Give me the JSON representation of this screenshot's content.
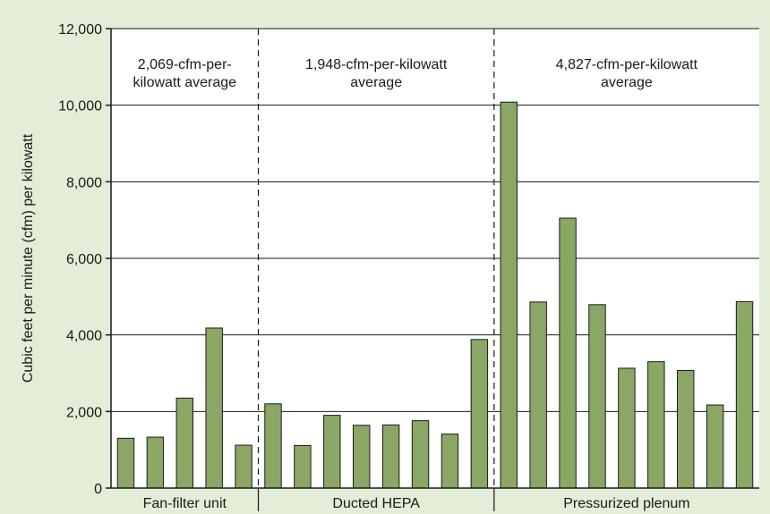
{
  "chart_data": {
    "type": "bar",
    "ylabel": "Cubic feet per minute (cfm) per kilowatt",
    "ylim": [
      0,
      12000
    ],
    "yticks": [
      "0",
      "2,000",
      "4,000",
      "6,000",
      "8,000",
      "10,000",
      "12,000"
    ],
    "ytick_values": [
      0,
      2000,
      4000,
      6000,
      8000,
      10000,
      12000
    ],
    "grid": true,
    "colors": {
      "bar": "#8aa765",
      "bar_edge": "#1a1a1a",
      "background": "#e3edd8",
      "plot": "#ffffff"
    },
    "groups": [
      {
        "name": "Fan-filter unit",
        "annotation": [
          "2,069-cfm-per-",
          "kilowatt average"
        ],
        "values": [
          1300,
          1330,
          2350,
          4180,
          1120
        ]
      },
      {
        "name": "Ducted HEPA",
        "annotation": [
          "1,948-cfm-per-kilowatt",
          "average"
        ],
        "values": [
          2200,
          1110,
          1900,
          1640,
          1650,
          1760,
          1410,
          3880
        ]
      },
      {
        "name": "Pressurized plenum",
        "annotation": [
          "4,827-cfm-per-kilowatt",
          "average"
        ],
        "values": [
          10080,
          4860,
          7050,
          4790,
          3130,
          3300,
          3070,
          2170,
          4870
        ]
      }
    ]
  }
}
